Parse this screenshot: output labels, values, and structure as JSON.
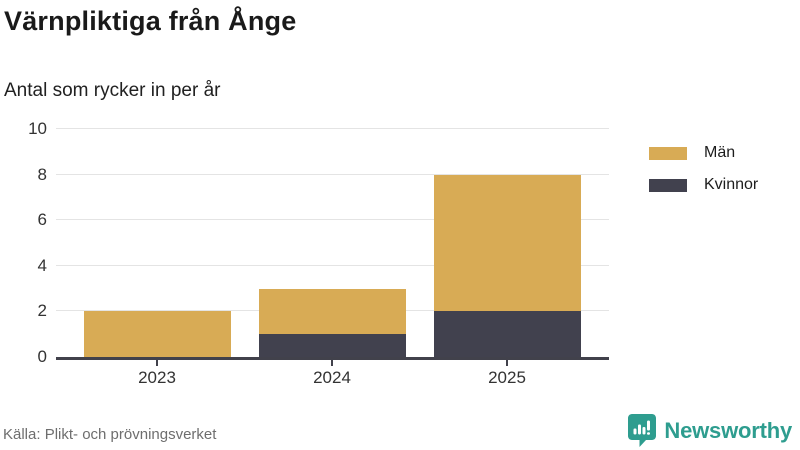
{
  "header": {
    "title": "Värnpliktiga från Ånge",
    "subtitle": "Antal som rycker in per år"
  },
  "footer": {
    "source": "Källa: Plikt- och prövningsverket",
    "brand": "Newsworthy"
  },
  "colors": {
    "men": "#d8ab55",
    "women": "#41414e",
    "brand_teal": "#2e9d8f",
    "grid": "#e4e4e4",
    "axis": "#41414b"
  },
  "chart_data": {
    "type": "bar",
    "stacked": true,
    "title": "Värnpliktiga från Ånge",
    "subtitle": "Antal som rycker in per år",
    "categories": [
      "2023",
      "2024",
      "2025"
    ],
    "series": [
      {
        "name": "Män",
        "values": [
          2,
          2,
          6
        ],
        "color": "#d8ab55"
      },
      {
        "name": "Kvinnor",
        "values": [
          0,
          1,
          2
        ],
        "color": "#41414e"
      }
    ],
    "stack_order_bottom_to_top": [
      "Kvinnor",
      "Män"
    ],
    "totals": [
      2,
      3,
      8
    ],
    "xlabel": "",
    "ylabel": "",
    "ylim": [
      0,
      10
    ],
    "yticks": [
      0,
      2,
      4,
      6,
      8,
      10
    ],
    "grid": "horizontal",
    "legend_position": "right"
  }
}
